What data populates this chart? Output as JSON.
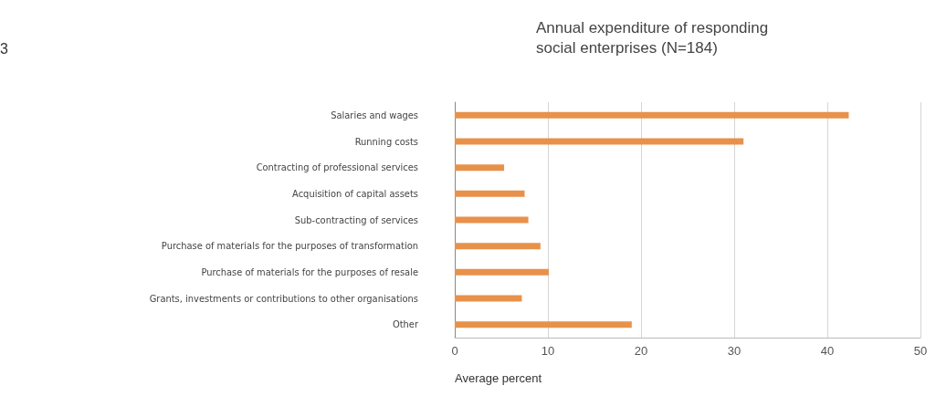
{
  "chart_data": {
    "type": "bar",
    "orientation": "horizontal",
    "title": "Annual expenditure of responding\nsocial enterprises (N=184)",
    "xlabel": "Average percent",
    "categories": [
      "Salaries and wages",
      "Running costs",
      "Contracting of professional services",
      "Acquisition of capital assets",
      "Sub-contracting of services",
      "Purchase of materials for the purposes of transformation",
      "Purchase of materials for the purposes of resale",
      "Grants, investments or contributions to other organisations",
      "Other"
    ],
    "values": [
      42.3,
      31.0,
      5.3,
      7.5,
      7.9,
      9.2,
      10.1,
      7.2,
      19.0
    ],
    "color": "#e8914a",
    "xlim": [
      0,
      50
    ],
    "xticks": [
      0,
      10,
      20,
      30,
      40,
      50
    ],
    "grid": "x",
    "annotations": [
      "3"
    ]
  }
}
